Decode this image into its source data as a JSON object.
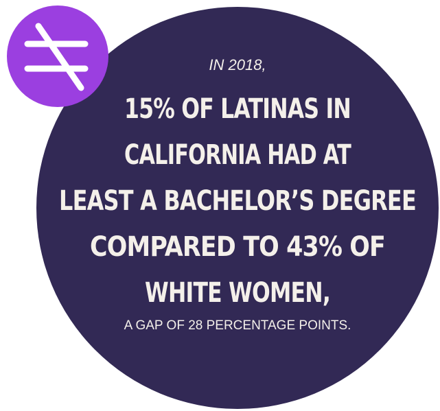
{
  "intro": "IN 2018,",
  "headline": [
    "15% OF LATINAS IN",
    "CALIFORNIA HAD AT",
    "LEAST A BACHELOR’S DEGREE",
    "COMPARED TO 43% OF",
    "WHITE WOMEN,"
  ],
  "footer": "A GAP OF 28 PERCENTAGE POINTS."
}
